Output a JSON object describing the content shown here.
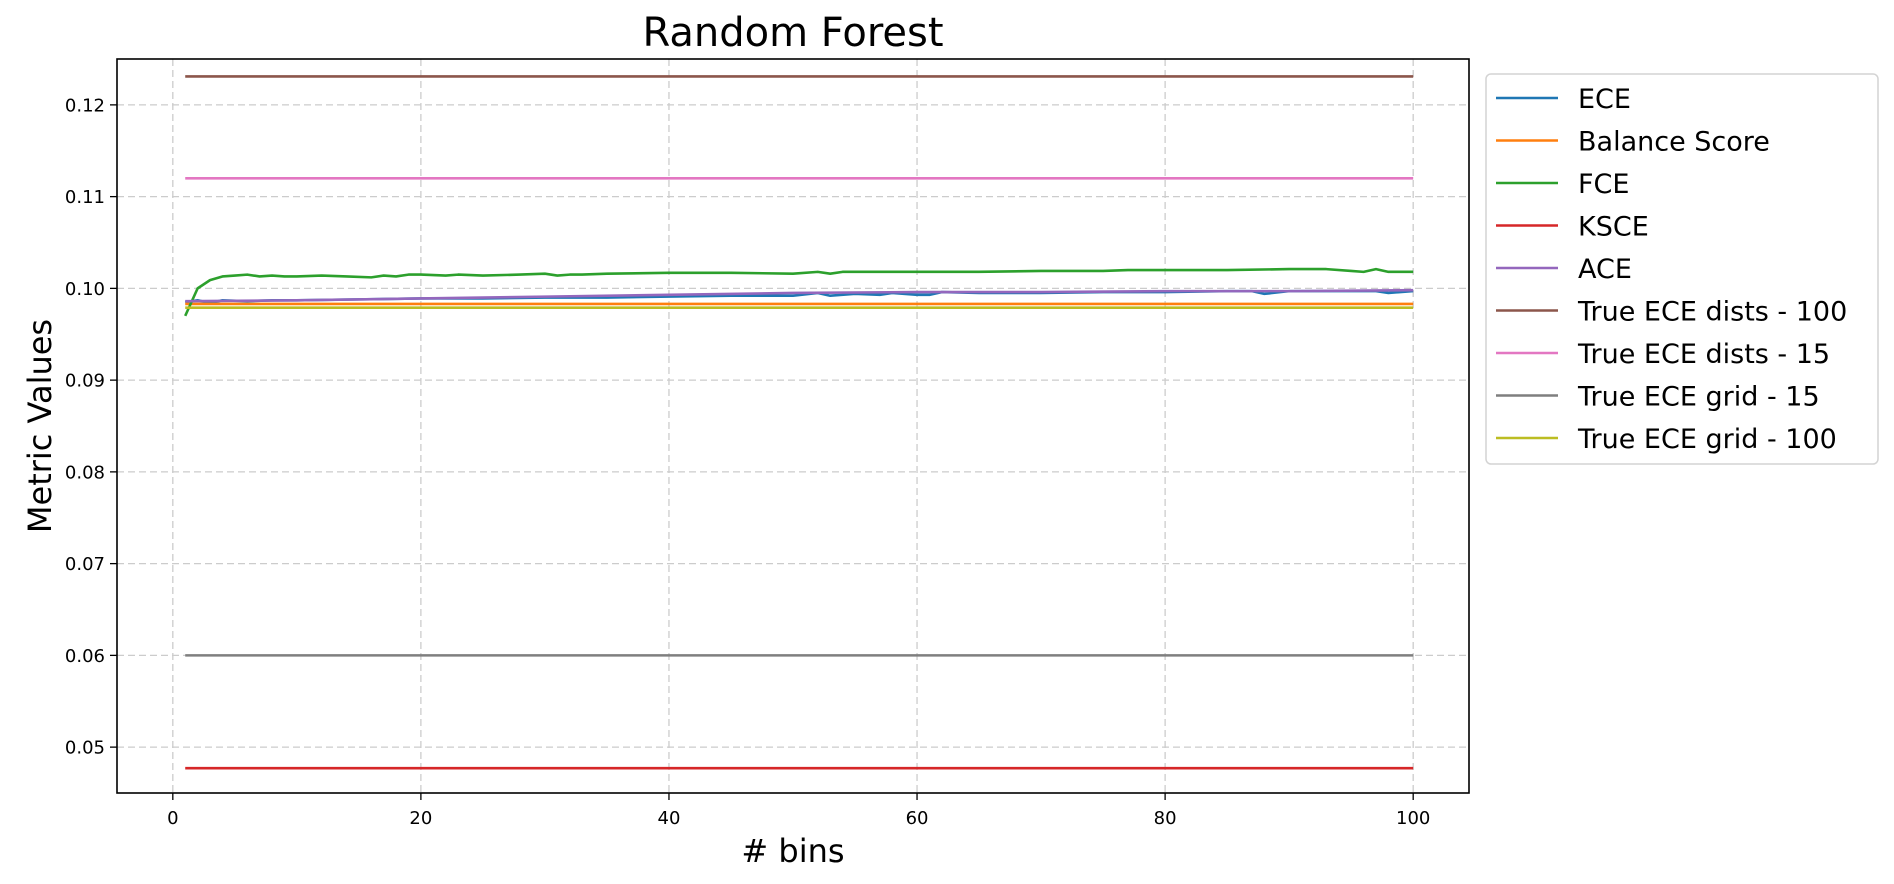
{
  "chart_data": {
    "type": "line",
    "title": "Random Forest",
    "xlabel": "# bins",
    "ylabel": "Metric Values",
    "xlim": [
      -4.5,
      104.5
    ],
    "ylim": [
      0.045,
      0.125
    ],
    "xticks": [
      0,
      20,
      40,
      60,
      80,
      100
    ],
    "yticks": [
      0.05,
      0.06,
      0.07,
      0.08,
      0.09,
      0.1,
      0.11,
      0.12
    ],
    "ytick_labels": [
      "0.05",
      "0.06",
      "0.07",
      "0.08",
      "0.09",
      "0.10",
      "0.11",
      "0.12"
    ],
    "grid": true,
    "legend_position": "outside-right-top",
    "series": [
      {
        "name": "ECE",
        "color": "#1f77b4",
        "x": [
          1,
          2,
          3,
          4,
          6,
          8,
          10,
          15,
          20,
          25,
          30,
          35,
          40,
          45,
          50,
          52,
          53,
          55,
          57,
          58,
          60,
          61,
          62,
          65,
          70,
          75,
          80,
          85,
          87,
          88,
          90,
          95,
          97,
          98,
          100
        ],
        "y": [
          0.0985,
          0.0987,
          0.0984,
          0.0987,
          0.0986,
          0.0987,
          0.0987,
          0.0988,
          0.0989,
          0.0989,
          0.099,
          0.099,
          0.0991,
          0.0992,
          0.0992,
          0.0995,
          0.0992,
          0.0994,
          0.0993,
          0.0995,
          0.0993,
          0.0993,
          0.0996,
          0.0995,
          0.0995,
          0.0996,
          0.0996,
          0.0997,
          0.0997,
          0.0994,
          0.0997,
          0.0997,
          0.0997,
          0.0995,
          0.0997
        ]
      },
      {
        "name": "Balance Score",
        "color": "#ff7f0e",
        "x": [
          1,
          100
        ],
        "y": [
          0.0983,
          0.0983
        ]
      },
      {
        "name": "FCE",
        "color": "#2ca02c",
        "x": [
          1,
          2,
          3,
          4,
          5,
          6,
          7,
          8,
          9,
          10,
          12,
          14,
          16,
          17,
          18,
          19,
          20,
          22,
          23,
          25,
          28,
          30,
          31,
          32,
          33,
          35,
          40,
          45,
          50,
          52,
          53,
          54,
          55,
          58,
          60,
          65,
          70,
          75,
          77,
          80,
          85,
          90,
          93,
          95,
          96,
          97,
          98,
          100
        ],
        "y": [
          0.097,
          0.1,
          0.1009,
          0.1013,
          0.1014,
          0.1015,
          0.1013,
          0.1014,
          0.1013,
          0.1013,
          0.1014,
          0.1013,
          0.1012,
          0.1014,
          0.1013,
          0.1015,
          0.1015,
          0.1014,
          0.1015,
          0.1014,
          0.1015,
          0.1016,
          0.1014,
          0.1015,
          0.1015,
          0.1016,
          0.1017,
          0.1017,
          0.1016,
          0.1018,
          0.1016,
          0.1018,
          0.1018,
          0.1018,
          0.1018,
          0.1018,
          0.1019,
          0.1019,
          0.102,
          0.102,
          0.102,
          0.1021,
          0.1021,
          0.1019,
          0.1018,
          0.1021,
          0.1018,
          0.1018
        ]
      },
      {
        "name": "KSCE",
        "color": "#d62728",
        "x": [
          1,
          100
        ],
        "y": [
          0.0477,
          0.0477
        ]
      },
      {
        "name": "ACE",
        "color": "#9467bd",
        "x": [
          1,
          10,
          20,
          30,
          40,
          50,
          60,
          70,
          80,
          90,
          100
        ],
        "y": [
          0.0986,
          0.0987,
          0.0989,
          0.0991,
          0.0993,
          0.0995,
          0.0996,
          0.0996,
          0.0997,
          0.0997,
          0.0998
        ]
      },
      {
        "name": "True ECE dists - 100",
        "color": "#8c564b",
        "x": [
          1,
          100
        ],
        "y": [
          0.1231,
          0.1231
        ]
      },
      {
        "name": "True ECE dists - 15",
        "color": "#e377c2",
        "x": [
          1,
          100
        ],
        "y": [
          0.112,
          0.112
        ]
      },
      {
        "name": "True ECE grid - 15",
        "color": "#7f7f7f",
        "x": [
          1,
          100
        ],
        "y": [
          0.06,
          0.06
        ]
      },
      {
        "name": "True ECE grid - 100",
        "color": "#bcbd22",
        "x": [
          1,
          100
        ],
        "y": [
          0.0979,
          0.0979
        ]
      }
    ]
  }
}
